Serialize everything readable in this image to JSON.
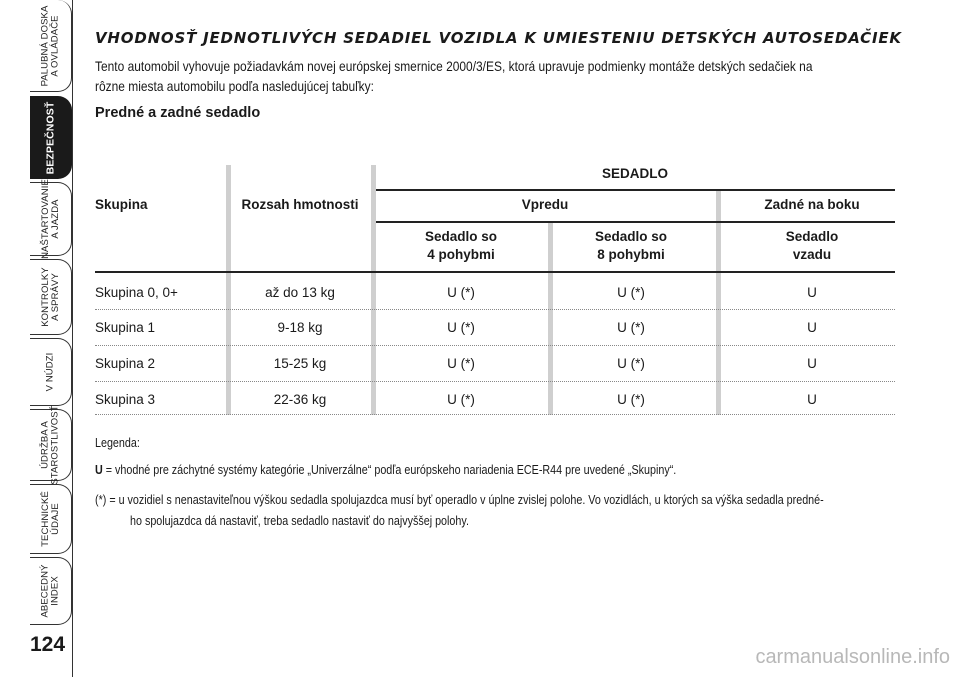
{
  "sidebar": {
    "tabs": [
      {
        "label": "PALUBNÁ DOSKA\nA OVLÁDAČE"
      },
      {
        "label": "BEZPEČNOSŤ",
        "active": true
      },
      {
        "label": "NAŠTARTOVANIE\nA JAZDA"
      },
      {
        "label": "KONTROLKY\nA SPRÁVY"
      },
      {
        "label": "V NÚDZI"
      },
      {
        "label": "ÚDRŽBA A\nSTAROSTLIVOSŤ"
      },
      {
        "label": "TECHNICKÉ\nÚDAJE"
      },
      {
        "label": "ABECEDNÝ\nINDEX"
      }
    ],
    "page_number": "124"
  },
  "title": "VHODNOSŤ JEDNOTLIVÝCH SEDADIEL VOZIDLA K UMIESTENIU DETSKÝCH AUTOSEDAČIEK",
  "intro": {
    "line1": "Tento automobil vyhovuje požiadavkám novej európskej smernice 2000/3/ES, ktorá upravuje podmienky montáže detských sedačiek na",
    "line2": "rôzne miesta automobilu podľa nasledujúcej tabuľky:"
  },
  "subheading": "Predné a zadné sedadlo",
  "table": {
    "header_top": "SEDADLO",
    "col_group": "Skupina",
    "col_weight": "Rozsah hmotnosti",
    "col_front": "Vpredu",
    "col_rear": "Zadné na boku",
    "sub_front_4_l1": "Sedadlo so",
    "sub_front_4_l2": "4 pohybmi",
    "sub_front_8_l1": "Sedadlo so",
    "sub_front_8_l2": "8 pohybmi",
    "sub_rear_l1": "Sedadlo",
    "sub_rear_l2": "vzadu",
    "rows": [
      {
        "group": "Skupina 0, 0+",
        "weight": "až do 13 kg",
        "front4": "U (*)",
        "front8": "U (*)",
        "rear": "U"
      },
      {
        "group": "Skupina 1",
        "weight": "9-18 kg",
        "front4": "U (*)",
        "front8": "U (*)",
        "rear": "U"
      },
      {
        "group": "Skupina 2",
        "weight": "15-25 kg",
        "front4": "U (*)",
        "front8": "U (*)",
        "rear": "U"
      },
      {
        "group": "Skupina 3",
        "weight": "22-36 kg",
        "front4": "U (*)",
        "front8": "U (*)",
        "rear": "U"
      }
    ]
  },
  "legend": {
    "title": "Legenda:",
    "u_key": "U",
    "u_text": " = vhodné pre záchytné systémy kategórie „Univerzálne“ podľa európskeho nariadenia ECE-R44 pre uvedené „Skupiny“.",
    "star_line1": "(*) = u vozidiel s nenastaviteľnou výškou sedadla spolujazdca musí byť operadlo v úplne zvislej polohe. Vo vozidlách, u ktorých sa výška sedadla predné-",
    "star_line2": "ho spolujazdca dá nastaviť, treba sedadlo nastaviť do najvyššej polohy."
  },
  "watermark": "carmanualsonline.info"
}
